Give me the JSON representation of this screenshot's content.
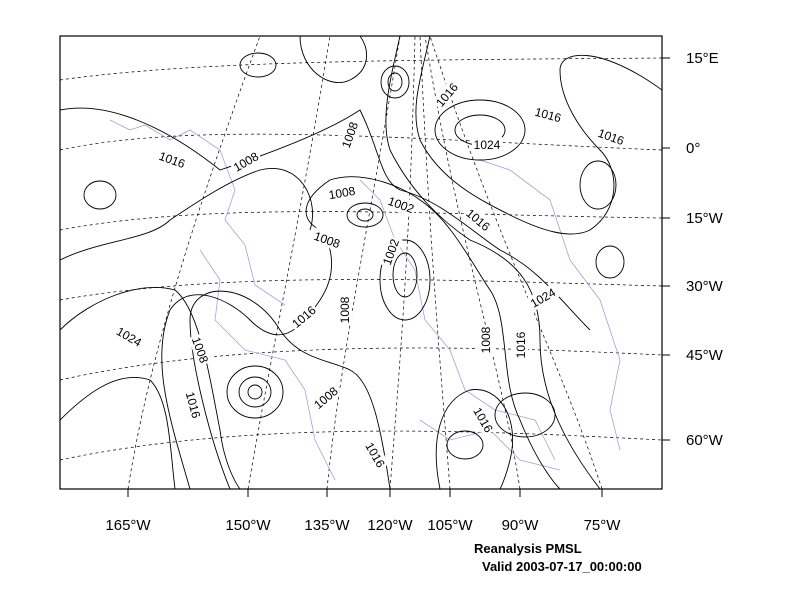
{
  "x_labels": [
    "165°W",
    "150°W",
    "135°W",
    "120°W",
    "105°W",
    "90°W",
    "75°W"
  ],
  "y_labels": [
    "15°E",
    "0°",
    "15°W",
    "30°W",
    "45°W",
    "60°W"
  ],
  "contour_labels": [
    "1016",
    "1016",
    "1016",
    "1024",
    "1008",
    "1008",
    "1016",
    "1008",
    "1002",
    "1016",
    "1008",
    "1002",
    "1024",
    "1016",
    "1008",
    "1024",
    "1008",
    "1008",
    "1016",
    "1016",
    "1008",
    "1016",
    "1016"
  ],
  "caption": {
    "title": "Reanalysis PMSL",
    "valid": "Valid 2003-07-17_00:00:00"
  }
}
